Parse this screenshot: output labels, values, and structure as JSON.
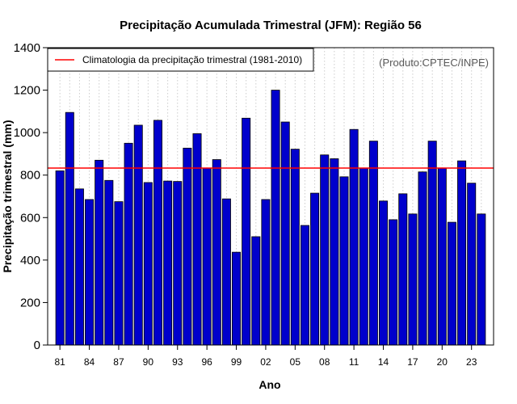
{
  "chart_data": {
    "type": "bar",
    "title": "Precipitação Acumulada Trimestral (JFM): Região 56",
    "xlabel": "Ano",
    "ylabel": "Precipitação trimestral (mm)",
    "source_note": "(Produto:CPTEC/INPE)",
    "ylim": [
      0,
      1400
    ],
    "yticks": [
      0,
      200,
      400,
      600,
      800,
      1000,
      1200,
      1400
    ],
    "ytick_labels": [
      "0",
      "200",
      "400",
      "600",
      "800",
      "1000",
      "1200",
      "1400"
    ],
    "categories": [
      "1981",
      "1982",
      "1983",
      "1984",
      "1985",
      "1986",
      "1987",
      "1988",
      "1989",
      "1990",
      "1991",
      "1992",
      "1993",
      "1994",
      "1995",
      "1996",
      "1997",
      "1998",
      "1999",
      "2000",
      "2001",
      "2002",
      "2003",
      "2004",
      "2005",
      "2006",
      "2007",
      "2008",
      "2009",
      "2010",
      "2011",
      "2012",
      "2013",
      "2014",
      "2015",
      "2016",
      "2017",
      "2018",
      "2019",
      "2020",
      "2021",
      "2022",
      "2023",
      "2024"
    ],
    "values": [
      820,
      1095,
      735,
      685,
      870,
      775,
      675,
      950,
      1035,
      765,
      1058,
      772,
      770,
      927,
      995,
      833,
      873,
      688,
      437,
      1068,
      510,
      685,
      1200,
      1050,
      922,
      563,
      715,
      895,
      877,
      792,
      1015,
      833,
      960,
      678,
      590,
      712,
      617,
      815,
      960,
      833,
      578,
      867,
      762,
      617
    ],
    "xtick_labels": [
      "81",
      "84",
      "87",
      "90",
      "93",
      "96",
      "99",
      "02",
      "05",
      "08",
      "11",
      "14",
      "17",
      "20",
      "23"
    ],
    "xtick_positions": [
      0,
      3,
      6,
      9,
      12,
      15,
      18,
      21,
      24,
      27,
      30,
      33,
      36,
      39,
      42
    ],
    "climatology": {
      "value": 833,
      "label": "Climatologia da precipitação trimestral (1981-2010)"
    },
    "grid": "vertical dotted",
    "legend_position": "top-left",
    "colors": {
      "bar_fill": "#0000cc",
      "bar_edge": "#000000",
      "climatology_line": "#ff0000",
      "grid": "#cccccc"
    }
  }
}
